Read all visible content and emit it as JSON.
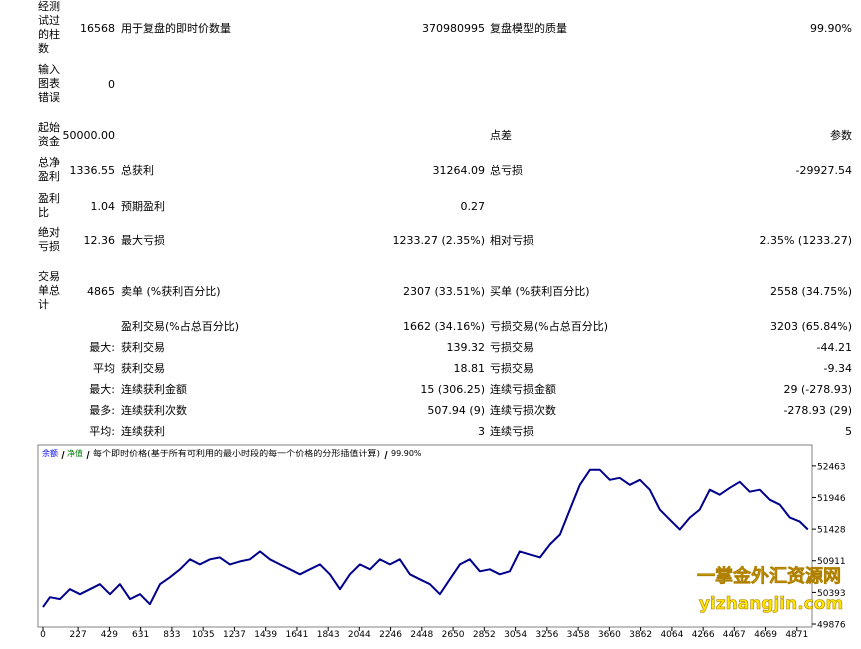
{
  "report": {
    "rows": [
      [
        "经测试过的柱数",
        "16568",
        "用于复盘的即时价数量",
        "370980995",
        "复盘模型的质量",
        "99.90%"
      ],
      [
        "输入图表错误",
        "0",
        null,
        null,
        null,
        null
      ],
      [
        "起始资金",
        "50000.00",
        null,
        null,
        "点差",
        "参数"
      ],
      [
        "总净盈利",
        "1336.55",
        "总获利",
        "31264.09",
        "总亏损",
        "-29927.54"
      ],
      [
        "盈利比",
        "1.04",
        "预期盈利",
        "0.27",
        null,
        null
      ],
      [
        "绝对亏损",
        "12.36",
        "最大亏损",
        "1233.27 (2.35%)",
        "相对亏损",
        "2.35% (1233.27)"
      ],
      [
        "交易单总计",
        "4865",
        "卖单 (%获利百分比)",
        "2307 (33.51%)",
        "买单 (%获利百分比)",
        "2558 (34.75%)"
      ],
      [
        null,
        null,
        "盈利交易(%占总百分比)",
        "1662 (34.16%)",
        "亏损交易(%占总百分比)",
        "3203 (65.84%)"
      ],
      [
        null,
        "最大:",
        "获利交易",
        "139.32",
        "亏损交易",
        "-44.21"
      ],
      [
        null,
        "平均",
        "获利交易",
        "18.81",
        "亏损交易",
        "-9.34"
      ],
      [
        null,
        "最大:",
        "连续获利金额",
        "15 (306.25)",
        "连续亏损金额",
        "29 (-278.93)"
      ],
      [
        null,
        "最多:",
        "连续获利次数",
        "507.94 (9)",
        "连续亏损次数",
        "-278.93 (29)"
      ],
      [
        null,
        "平均:",
        "连续获利",
        "3",
        "连续亏损",
        "5"
      ]
    ]
  },
  "chart_data": {
    "type": "line",
    "legend": [
      {
        "name": "余额",
        "color": "#0000ff"
      },
      {
        "name": "净值",
        "color": "#008000"
      }
    ],
    "header": "每个即时价格(基于所有可利用的最小时段的每一个价格的分形插值计算)",
    "quality": "99.90%",
    "x": [
      0,
      45,
      110,
      174,
      239,
      304,
      368,
      433,
      497,
      562,
      627,
      691,
      756,
      820,
      885,
      950,
      1014,
      1079,
      1143,
      1208,
      1273,
      1337,
      1402,
      1466,
      1531,
      1596,
      1660,
      1725,
      1790,
      1854,
      1919,
      1983,
      2048,
      2113,
      2177,
      2242,
      2306,
      2371,
      2435,
      2500,
      2565,
      2629,
      2694,
      2758,
      2823,
      2888,
      2952,
      3017,
      3081,
      3146,
      3211,
      3275,
      3340,
      3404,
      3469,
      3534,
      3598,
      3663,
      3727,
      3792,
      3857,
      3921,
      3986,
      4050,
      4115,
      4180,
      4244,
      4309,
      4373,
      4438,
      4503,
      4567,
      4632,
      4696,
      4761,
      4826,
      4890,
      4942
    ],
    "series": [
      {
        "color": "#00008b",
        "values": [
          50153,
          50315,
          50283,
          50446,
          50364,
          50446,
          50527,
          50364,
          50527,
          50283,
          50364,
          50201,
          50527,
          50641,
          50771,
          50934,
          50852,
          50934,
          50966,
          50852,
          50901,
          50934,
          51064,
          50934,
          50852,
          50771,
          50690,
          50771,
          50852,
          50690,
          50446,
          50690,
          50852,
          50771,
          50934,
          50852,
          50934,
          50690,
          50608,
          50527,
          50364,
          50608,
          50852,
          50934,
          50738,
          50771,
          50690,
          50738,
          51064,
          51015,
          50966,
          51178,
          51340,
          51747,
          52154,
          52398,
          52398,
          52235,
          52268,
          52154,
          52235,
          52073,
          51747,
          51584,
          51422,
          51617,
          51747,
          52073,
          51991,
          52105,
          52203,
          52040,
          52073,
          51910,
          51828,
          51617,
          51552,
          51422
        ]
      }
    ],
    "xlim": [
      0,
      4950
    ],
    "xticks": [
      0,
      227,
      429,
      631,
      833,
      1035,
      1237,
      1439,
      1641,
      1843,
      2044,
      2246,
      2448,
      2650,
      2852,
      3054,
      3256,
      3458,
      3660,
      3862,
      4064,
      4266,
      4467,
      4669,
      4871
    ],
    "ylim": [
      49860,
      52788
    ],
    "yticks": [
      49876,
      50393,
      50911,
      51428,
      51946,
      52463
    ]
  },
  "watermark": {
    "title": "一掌金外汇资源网",
    "url": "yizhangjin.com"
  }
}
